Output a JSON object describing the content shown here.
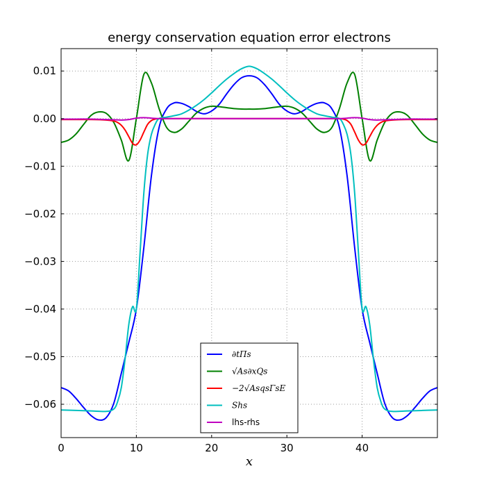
{
  "chart_data": {
    "type": "line",
    "title": "energy conservation equation error electrons",
    "xlabel": "x",
    "ylabel": "",
    "xlim": [
      0,
      50
    ],
    "ylim": [
      -0.067,
      0.0147
    ],
    "xticks": [
      0,
      10,
      20,
      30,
      40
    ],
    "xtick_labels": [
      "0",
      "10",
      "20",
      "30",
      "40"
    ],
    "yticks": [
      0.01,
      0.0,
      -0.01,
      -0.02,
      -0.03,
      -0.04,
      -0.05,
      -0.06
    ],
    "ytick_labels": [
      "0.01",
      "0.00",
      "−0.01",
      "−0.02",
      "−0.03",
      "−0.04",
      "−0.05",
      "−0.06"
    ],
    "grid": true,
    "legend_position": "lower-center",
    "series": [
      {
        "name": "∂tΠs",
        "color": "#0000ff",
        "x": [
          0,
          1,
          2,
          3,
          4,
          5,
          6,
          7,
          8,
          9,
          10,
          11,
          12,
          13,
          14,
          15,
          16,
          17,
          18,
          19,
          20,
          21,
          22,
          23,
          24,
          25,
          26,
          27,
          28,
          29,
          30,
          31,
          32,
          33,
          34,
          35,
          36,
          37,
          38,
          39,
          40,
          41,
          42,
          43,
          44,
          45,
          46,
          47,
          48,
          49,
          50
        ],
        "y": [
          -0.0565,
          -0.0572,
          -0.0588,
          -0.0607,
          -0.0624,
          -0.0633,
          -0.0628,
          -0.0598,
          -0.0535,
          -0.047,
          -0.04,
          -0.027,
          -0.012,
          -0.002,
          0.002,
          0.0033,
          0.0032,
          0.0025,
          0.0015,
          0.001,
          0.0016,
          0.003,
          0.0052,
          0.0072,
          0.0086,
          0.009,
          0.0086,
          0.0072,
          0.0052,
          0.003,
          0.0016,
          0.001,
          0.0015,
          0.0025,
          0.0032,
          0.0033,
          0.002,
          -0.002,
          -0.012,
          -0.027,
          -0.04,
          -0.047,
          -0.0535,
          -0.0598,
          -0.0628,
          -0.0633,
          -0.0624,
          -0.0607,
          -0.0588,
          -0.0572,
          -0.0565
        ]
      },
      {
        "name": "√As∂xQs",
        "color": "#008000",
        "x": [
          0,
          1,
          2,
          3,
          4,
          5,
          6,
          7,
          8,
          9,
          10,
          11,
          12,
          13,
          14,
          15,
          16,
          17,
          18,
          19,
          20,
          21,
          22,
          23,
          24,
          25,
          26,
          27,
          28,
          29,
          30,
          31,
          32,
          33,
          34,
          35,
          36,
          37,
          38,
          39,
          40,
          41,
          42,
          43,
          44,
          45,
          46,
          47,
          48,
          49,
          50
        ],
        "y": [
          -0.005,
          -0.0045,
          -0.0032,
          -0.0012,
          0.0007,
          0.0014,
          0.0011,
          -0.0008,
          -0.0045,
          -0.0088,
          0.0,
          0.0093,
          0.0075,
          0.0022,
          -0.0018,
          -0.0029,
          -0.0022,
          -0.0005,
          0.0012,
          0.0022,
          0.0026,
          0.0025,
          0.0023,
          0.0021,
          0.002,
          0.002,
          0.002,
          0.0021,
          0.0023,
          0.0025,
          0.0026,
          0.0022,
          0.0012,
          -0.0005,
          -0.0022,
          -0.0029,
          -0.0018,
          0.0022,
          0.0075,
          0.0093,
          0.0,
          -0.0088,
          -0.0045,
          -0.0008,
          0.0011,
          0.0014,
          0.0007,
          -0.0012,
          -0.0032,
          -0.0045,
          -0.005
        ]
      },
      {
        "name": "−2√AsqsΓsE",
        "color": "#ff0000",
        "x": [
          0,
          2,
          4,
          6,
          7,
          7.5,
          8,
          8.5,
          9,
          9.5,
          10,
          10.5,
          11,
          11.5,
          12,
          12.5,
          13,
          14,
          16,
          20,
          25,
          30,
          34,
          36,
          37,
          37.5,
          38,
          38.5,
          39,
          39.5,
          40,
          40.5,
          41,
          41.5,
          42,
          42.5,
          43,
          44,
          46,
          48,
          50
        ],
        "y": [
          -0.0002,
          -0.0002,
          -0.0002,
          -0.0003,
          -0.0005,
          -0.0008,
          -0.0014,
          -0.0024,
          -0.0038,
          -0.0052,
          -0.0055,
          -0.0045,
          -0.0028,
          -0.0012,
          -0.0004,
          -0.0001,
          0.0,
          0.0,
          0.0,
          0.0,
          0.0,
          0.0,
          0.0,
          0.0,
          0.0,
          -0.0001,
          -0.0004,
          -0.0012,
          -0.0028,
          -0.0045,
          -0.0055,
          -0.0052,
          -0.0038,
          -0.0024,
          -0.0014,
          -0.0008,
          -0.0005,
          -0.0003,
          -0.0002,
          -0.0002,
          -0.0002
        ]
      },
      {
        "name": "Shs",
        "color": "#00bfbf",
        "x": [
          0,
          2,
          4,
          6,
          7,
          7.5,
          8,
          8.5,
          9,
          9.5,
          10,
          10.5,
          11,
          11.5,
          12,
          12.5,
          13,
          14,
          15,
          16,
          17,
          18,
          19,
          20,
          21,
          22,
          23,
          24,
          25,
          26,
          27,
          28,
          29,
          30,
          31,
          32,
          33,
          34,
          35,
          36,
          37,
          37.5,
          38,
          38.5,
          39,
          39.5,
          40,
          40.5,
          41,
          41.5,
          42,
          42.5,
          43,
          44,
          46,
          48,
          50
        ],
        "y": [
          -0.0612,
          -0.0613,
          -0.0614,
          -0.0615,
          -0.061,
          -0.0595,
          -0.0565,
          -0.0505,
          -0.0432,
          -0.0395,
          -0.04,
          -0.028,
          -0.0155,
          -0.0075,
          -0.0033,
          -0.0012,
          0.0,
          0.0003,
          0.0006,
          0.001,
          0.0018,
          0.0028,
          0.004,
          0.0054,
          0.0069,
          0.0083,
          0.0095,
          0.0105,
          0.011,
          0.0105,
          0.0095,
          0.0083,
          0.0069,
          0.0054,
          0.004,
          0.0028,
          0.0018,
          0.001,
          0.0006,
          0.0003,
          0.0,
          -0.0012,
          -0.0033,
          -0.0075,
          -0.0155,
          -0.028,
          -0.04,
          -0.0395,
          -0.0432,
          -0.0505,
          -0.0565,
          -0.0595,
          -0.061,
          -0.0615,
          -0.0614,
          -0.0613,
          -0.0612
        ]
      },
      {
        "name": "lhs-rhs",
        "color": "#bf00bf",
        "x": [
          0,
          2,
          4,
          6,
          8,
          9,
          10,
          11,
          12,
          13,
          14,
          16,
          20,
          25,
          30,
          34,
          36,
          37,
          38,
          39,
          40,
          41,
          42,
          44,
          46,
          48,
          50
        ],
        "y": [
          -0.0001,
          -0.0001,
          -0.0001,
          -0.0002,
          -0.0003,
          -0.0002,
          0.0001,
          0.0002,
          0.0001,
          0.0,
          0.0,
          0.0,
          0.0,
          0.0,
          0.0,
          0.0,
          0.0,
          0.0,
          0.0001,
          0.0002,
          0.0001,
          -0.0002,
          -0.0003,
          -0.0002,
          -0.0001,
          -0.0001,
          -0.0001
        ]
      }
    ]
  }
}
